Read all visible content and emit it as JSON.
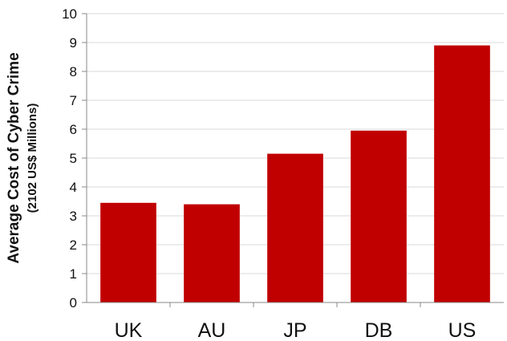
{
  "chart_data": {
    "type": "bar",
    "categories": [
      "UK",
      "AU",
      "JP",
      "DB",
      "US"
    ],
    "values": [
      3.45,
      3.4,
      5.15,
      5.95,
      8.9
    ],
    "title": "",
    "xlabel": "",
    "ylabel": "Average Cost of Cyber Crime",
    "ylabel_sub": "(2102 US$ Millions)",
    "ylim": [
      0,
      10
    ],
    "yticks": [
      "0",
      "1",
      "2",
      "3",
      "4",
      "5",
      "6",
      "7",
      "8",
      "9",
      "10"
    ],
    "grid": true,
    "bar_color": "#c00000",
    "grid_color": "#d9d9d9"
  }
}
